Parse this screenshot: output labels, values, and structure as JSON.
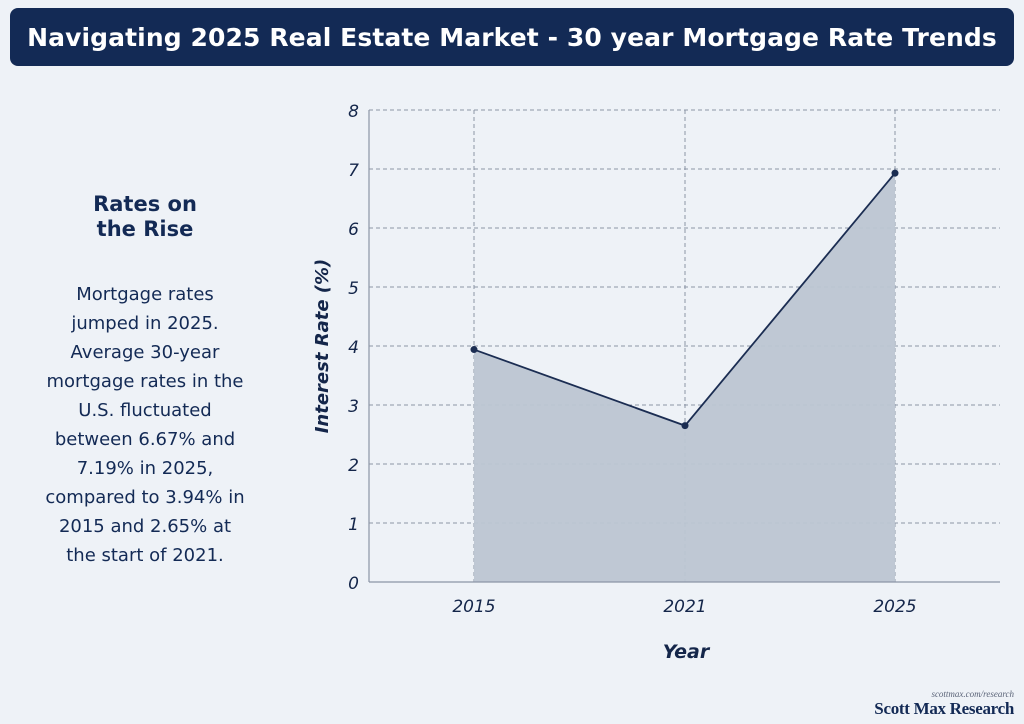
{
  "title": "Navigating 2025 Real Estate Market - 30 year Mortgage Rate Trends",
  "sidebar": {
    "heading_line1": "Rates on",
    "heading_line2": "the Rise",
    "body_lines": [
      "Mortgage rates",
      "jumped in 2025.",
      "Average 30-year",
      "mortgage rates in the",
      "U.S. fluctuated",
      "between 6.67% and",
      "7.19% in 2025,",
      "compared to 3.94% in",
      "2015 and 2.65% at",
      "the start of 2021."
    ]
  },
  "chart_data": {
    "type": "area",
    "categories": [
      "2015",
      "2021",
      "2025"
    ],
    "values": [
      3.94,
      2.65,
      6.93
    ],
    "xlabel": "Year",
    "ylabel": "Interest Rate (%)",
    "ylim": [
      0,
      8
    ],
    "yticks": [
      0,
      1,
      2,
      3,
      4,
      5,
      6,
      7,
      8
    ],
    "grid": true,
    "line_color": "#1b2d52",
    "fill_color": "#bcc5d2"
  },
  "footer": {
    "url": "scottmax.com/research",
    "brand": "Scott Max Research"
  }
}
